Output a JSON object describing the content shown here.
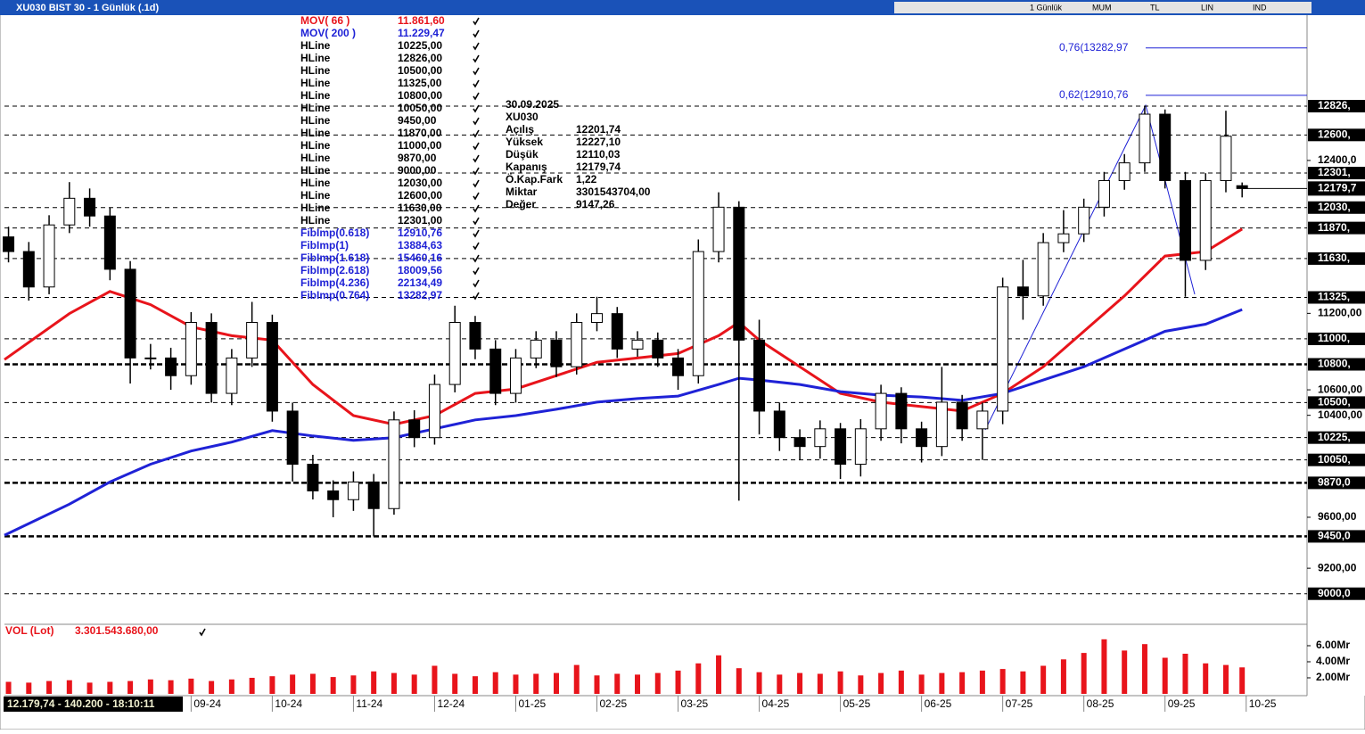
{
  "window": {
    "title": "XU030 BIST 30 - 1 Günlük (.1d)",
    "toolbar": [
      "1 Günlük",
      "MUM",
      "TL",
      "LIN",
      "IND"
    ]
  },
  "status": "12.179,74 - 140.200 - 18:10:11",
  "info": {
    "date": "30.09.2025",
    "symbol": "XU030",
    "rows": [
      [
        "Açılış",
        "12201,74"
      ],
      [
        "Yüksek",
        "12227,10"
      ],
      [
        "Düşük",
        "12110,03"
      ],
      [
        "Kapanış",
        "12179,74"
      ],
      [
        "Ö.Kap.Fark",
        "1,22"
      ],
      [
        "Miktar",
        "3301543704,00"
      ],
      [
        "Değer",
        "9147,26"
      ]
    ]
  },
  "chart_data": [
    {
      "type": "candlestick",
      "color": "#000000",
      "x": [
        -2.25,
        -2,
        -1.75,
        -1.5,
        -1.25,
        -1,
        -0.75,
        -0.5,
        -0.25,
        0,
        0.25,
        0.5,
        0.75,
        1,
        1.25,
        1.5,
        1.75,
        2,
        2.25,
        2.5,
        2.75,
        3,
        3.25,
        3.5,
        3.75,
        4,
        4.25,
        4.5,
        4.75,
        5,
        5.25,
        5.5,
        5.75,
        6,
        6.25,
        6.5,
        6.75,
        7,
        7.25,
        7.5,
        7.75,
        8,
        8.25,
        8.5,
        8.75,
        9,
        9.25,
        9.5,
        9.75,
        10,
        10.25,
        10.5,
        10.75,
        11,
        11.25,
        11.5,
        11.75,
        12,
        12.25,
        12.5,
        12.75,
        12.95
      ],
      "open": [
        11800,
        11685,
        11407,
        11894,
        12103,
        11964,
        11546,
        10850,
        10850,
        10711,
        11129,
        10572,
        10850,
        11129,
        10433,
        10016,
        9807,
        9738,
        9877,
        9668,
        10364,
        10225,
        10642,
        11129,
        10920,
        10572,
        10850,
        10990,
        10781,
        11129,
        11198,
        10920,
        10990,
        10850,
        10711,
        11685,
        12033,
        10990,
        10433,
        10225,
        10155,
        10294,
        10016,
        10294,
        10572,
        10294,
        10155,
        10503,
        10294,
        10433,
        11407,
        11337,
        11755,
        11824,
        12033,
        12242,
        12381,
        12763,
        12242,
        11616,
        12242,
        12201.74
      ],
      "high": [
        11880,
        11760,
        11970,
        12230,
        12180,
        12030,
        11610,
        10960,
        10930,
        11210,
        11200,
        10920,
        11290,
        11190,
        10500,
        10090,
        9890,
        9960,
        9940,
        10430,
        10440,
        10720,
        11260,
        11180,
        10990,
        10920,
        11060,
        11060,
        11200,
        11330,
        11250,
        11060,
        11050,
        10920,
        11780,
        12150,
        12080,
        11150,
        10500,
        10290,
        10360,
        10340,
        10370,
        10640,
        10620,
        10350,
        10780,
        10560,
        10500,
        11480,
        11620,
        11830,
        12010,
        12100,
        12310,
        12450,
        12826,
        12800,
        12310,
        12300,
        12790,
        12227.1
      ],
      "low": [
        11600,
        11300,
        11350,
        11830,
        11880,
        11460,
        10650,
        10760,
        10600,
        10640,
        10500,
        10480,
        10780,
        10350,
        9880,
        9740,
        9600,
        9650,
        9450,
        9620,
        10150,
        10170,
        10580,
        10840,
        10480,
        10500,
        10770,
        10700,
        10720,
        11060,
        10850,
        10860,
        10780,
        10600,
        10650,
        11600,
        9730,
        10250,
        10120,
        10050,
        10060,
        9900,
        9920,
        10200,
        10180,
        10030,
        10080,
        10200,
        10050,
        10330,
        11150,
        11260,
        11680,
        11760,
        11960,
        12170,
        12310,
        12180,
        11330,
        11540,
        12150,
        12110.03
      ],
      "close": [
        11685,
        11407,
        11894,
        12103,
        11964,
        11546,
        10850,
        10850,
        10711,
        11129,
        10572,
        10850,
        11129,
        10433,
        10016,
        9807,
        9738,
        9877,
        9668,
        10364,
        10225,
        10642,
        11129,
        10920,
        10572,
        10850,
        10990,
        10781,
        11129,
        11198,
        10920,
        10990,
        10850,
        10711,
        11685,
        12033,
        10990,
        10433,
        10225,
        10155,
        10294,
        10016,
        10294,
        10572,
        10294,
        10155,
        10503,
        10294,
        10433,
        11407,
        11337,
        11755,
        11824,
        12033,
        12242,
        12381,
        12763,
        12242,
        11616,
        12242,
        12590,
        12179.74
      ],
      "last_label": "12179,7",
      "series": [
        {
          "name": "MOV( 66 )",
          "color": "#e8141b",
          "value_label": "11.861,60",
          "x": [
            -2.3,
            -1.5,
            -1,
            -0.5,
            0,
            0.5,
            1,
            1.5,
            2,
            2.5,
            3,
            3.5,
            4,
            4.5,
            5,
            5.5,
            6,
            6.5,
            6.75,
            7,
            7.5,
            8,
            8.5,
            9,
            9.5,
            10,
            10.5,
            11,
            11.5,
            12,
            12.5,
            12.95
          ],
          "values": [
            10837,
            11198,
            11372,
            11268,
            11094,
            11025,
            10990,
            10642,
            10398,
            10329,
            10398,
            10572,
            10607,
            10711,
            10816,
            10850,
            10885,
            11025,
            11129,
            10990,
            10781,
            10572,
            10503,
            10468,
            10433,
            10572,
            10781,
            11059,
            11337,
            11650,
            11685,
            11861.6
          ]
        },
        {
          "name": "MOV( 200 )",
          "color": "#1f22d6",
          "value_label": "11.229,47",
          "x": [
            -2.3,
            -1.5,
            -1,
            -0.5,
            0,
            0.5,
            1,
            1.5,
            2,
            2.5,
            3,
            3.5,
            4,
            4.5,
            5,
            5.5,
            6,
            6.5,
            6.75,
            7,
            7.5,
            8,
            8.5,
            9,
            9.5,
            10,
            10.5,
            11,
            11.5,
            12,
            12.5,
            12.95
          ],
          "values": [
            9459,
            9703,
            9877,
            10016,
            10120,
            10190,
            10280,
            10238,
            10204,
            10225,
            10294,
            10364,
            10398,
            10447,
            10503,
            10531,
            10551,
            10642,
            10691,
            10677,
            10642,
            10586,
            10558,
            10544,
            10517,
            10572,
            10677,
            10781,
            10920,
            11059,
            11115,
            11229.47
          ]
        }
      ],
      "hlines": [
        {
          "name": "HLine",
          "value": 10225,
          "label": "10225,00",
          "axis_label": "10225,"
        },
        {
          "name": "HLine",
          "value": 12826,
          "label": "12826,00",
          "axis_label": "12826,"
        },
        {
          "name": "HLine",
          "value": 10500,
          "label": "10500,00",
          "axis_label": "10500,"
        },
        {
          "name": "HLine",
          "value": 11325,
          "label": "11325,00",
          "axis_label": "11325,"
        },
        {
          "name": "HLine",
          "value": 10800,
          "label": "10800,00",
          "axis_label": "10800,",
          "thick": true
        },
        {
          "name": "HLine",
          "value": 10050,
          "label": "10050,00",
          "axis_label": "10050,"
        },
        {
          "name": "HLine",
          "value": 9450,
          "label": "9450,00",
          "axis_label": "9450,0",
          "thick": true
        },
        {
          "name": "HLine",
          "value": 11870,
          "label": "11870,00",
          "axis_label": "11870,"
        },
        {
          "name": "HLine",
          "value": 11000,
          "label": "11000,00",
          "axis_label": "11000,"
        },
        {
          "name": "HLine",
          "value": 9870,
          "label": "9870,00",
          "axis_label": "9870,0",
          "thick": true
        },
        {
          "name": "HLine",
          "value": 9000,
          "label": "9000,00",
          "axis_label": "9000,0"
        },
        {
          "name": "HLine",
          "value": 12030,
          "label": "12030,00",
          "axis_label": "12030,"
        },
        {
          "name": "HLine",
          "value": 12600,
          "label": "12600,00",
          "axis_label": "12600,"
        },
        {
          "name": "HLine",
          "value": 11630,
          "label": "11630,00",
          "axis_label": "11630,"
        },
        {
          "name": "HLine",
          "value": 12301,
          "label": "12301,00",
          "axis_label": "12301,"
        }
      ],
      "fib_levels": [
        {
          "name": "FibImp(0.618)",
          "value": 12910.76,
          "label": "12910,76",
          "chart_label": "0,62(12910,76"
        },
        {
          "name": "FibImp(1)",
          "value": 13884.63,
          "label": "13884,63"
        },
        {
          "name": "FibImp(1.618)",
          "value": 15460.16,
          "label": "15460,16"
        },
        {
          "name": "FibImp(2.618)",
          "value": 18009.56,
          "label": "18009,56"
        },
        {
          "name": "FibImp(4.236)",
          "value": 22134.49,
          "label": "22134,49"
        },
        {
          "name": "FibImp(0.764)",
          "value": 13282.97,
          "label": "13282,97",
          "chart_label": "0,76(13282,97"
        }
      ],
      "fib_color": "#1f22d6",
      "xlim": [
        -2.3,
        13.75
      ],
      "ylim": [
        8760,
        13540
      ],
      "yticks": [
        {
          "value": 9200,
          "label": "9200,00"
        },
        {
          "value": 9600,
          "label": "9600,00"
        },
        {
          "value": 10400,
          "label": "10400,00"
        },
        {
          "value": 10600,
          "label": "10600,00"
        },
        {
          "value": 11200,
          "label": "11200,00"
        },
        {
          "value": 12400,
          "label": "12400,0"
        }
      ],
      "xticks": [
        {
          "value": 0,
          "label": "09-24"
        },
        {
          "value": 1,
          "label": "10-24"
        },
        {
          "value": 2,
          "label": "11-24"
        },
        {
          "value": 3,
          "label": "12-24"
        },
        {
          "value": 4,
          "label": "01-25"
        },
        {
          "value": 5,
          "label": "02-25"
        },
        {
          "value": 6,
          "label": "03-25"
        },
        {
          "value": 7,
          "label": "04-25"
        },
        {
          "value": 8,
          "label": "05-25"
        },
        {
          "value": 9,
          "label": "06-25"
        },
        {
          "value": 10,
          "label": "07-25"
        },
        {
          "value": 11,
          "label": "08-25"
        },
        {
          "value": 12,
          "label": "09-25"
        },
        {
          "value": 13,
          "label": "10-25"
        }
      ]
    },
    {
      "type": "bar",
      "name": "VOL (Lot)",
      "value_label": "3.301.543.680,00",
      "color": "#e8141b",
      "x": [
        -2.25,
        -2,
        -1.75,
        -1.5,
        -1.25,
        -1,
        -0.75,
        -0.5,
        -0.25,
        0,
        0.25,
        0.5,
        0.75,
        1,
        1.25,
        1.5,
        1.75,
        2,
        2.25,
        2.5,
        2.75,
        3,
        3.25,
        3.5,
        3.75,
        4,
        4.25,
        4.5,
        4.75,
        5,
        5.25,
        5.5,
        5.75,
        6,
        6.25,
        6.5,
        6.75,
        7,
        7.25,
        7.5,
        7.75,
        8,
        8.25,
        8.5,
        8.75,
        9,
        9.25,
        9.5,
        9.75,
        10,
        10.25,
        10.5,
        10.75,
        11,
        11.25,
        11.5,
        11.75,
        12,
        12.25,
        12.5,
        12.75,
        12.95
      ],
      "values": [
        1.5,
        1.4,
        1.6,
        1.7,
        1.4,
        1.5,
        1.6,
        1.8,
        1.7,
        1.9,
        1.6,
        1.8,
        2.0,
        2.2,
        2.4,
        2.5,
        2.1,
        2.3,
        2.8,
        2.6,
        2.4,
        3.5,
        2.5,
        2.2,
        2.7,
        2.4,
        2.5,
        2.6,
        3.6,
        2.3,
        2.5,
        2.4,
        2.6,
        2.9,
        3.8,
        4.8,
        3.2,
        2.7,
        2.4,
        2.6,
        2.5,
        2.8,
        2.3,
        2.6,
        2.9,
        2.4,
        2.6,
        2.7,
        2.9,
        3.1,
        2.8,
        3.5,
        4.3,
        5.1,
        6.8,
        5.4,
        6.2,
        4.5,
        5.0,
        3.8,
        3.6,
        3.30154368
      ],
      "xlim": [
        -2.3,
        13.75
      ],
      "ylim": [
        0,
        8
      ],
      "yticks": [
        {
          "value": 2,
          "label": "2.00Mr"
        },
        {
          "value": 4,
          "label": "4.00Mr"
        },
        {
          "value": 6,
          "label": "6.00Mr"
        }
      ]
    }
  ]
}
